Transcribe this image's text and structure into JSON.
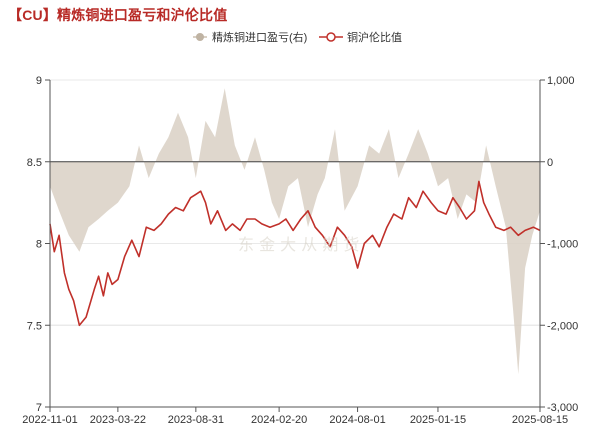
{
  "title": "【CU】精炼铜进口盈亏和沪伦比值",
  "watermark": "东 金 大 从 期 货",
  "colors": {
    "title": "#b82a26",
    "area": "#d9d0c4",
    "line": "#c0302a",
    "axis": "#555555",
    "grid": "#dcdcdc"
  },
  "chart_data": {
    "type": "line",
    "title": "【CU】精炼铜进口盈亏和沪伦比值",
    "legend_position": "top-right",
    "x_axis": {
      "labels": [
        "2022-11-01",
        "2023-03-22",
        "2023-08-31",
        "2024-02-20",
        "2024-08-01",
        "2025-01-15",
        "2025-08-15"
      ],
      "range": [
        "2022-11-01",
        "2025-08-15"
      ]
    },
    "y_left": {
      "range": [
        7,
        9
      ],
      "ticks": [
        7,
        7.5,
        8,
        8.5,
        9
      ],
      "tick_labels": [
        "7",
        "7.5",
        "8",
        "8.5",
        "9"
      ]
    },
    "y_right": {
      "range": [
        -3000,
        1000
      ],
      "ticks": [
        -3000,
        -2000,
        -1000,
        0,
        1000
      ],
      "tick_labels": [
        "-3,000",
        "-2,000",
        "-1,000",
        "0",
        "1,000"
      ]
    },
    "grid": true,
    "series": [
      {
        "name": "精炼铜进口盈亏(右)",
        "type": "area",
        "axis": "right",
        "color": "#d9d0c4",
        "x": [
          "2022-11-01",
          "2022-11-20",
          "2022-12-10",
          "2023-01-01",
          "2023-01-20",
          "2023-02-10",
          "2023-03-01",
          "2023-03-22",
          "2023-04-15",
          "2023-05-05",
          "2023-05-25",
          "2023-06-15",
          "2023-07-05",
          "2023-07-25",
          "2023-08-15",
          "2023-08-31",
          "2023-09-20",
          "2023-10-10",
          "2023-10-30",
          "2023-11-20",
          "2023-12-10",
          "2024-01-01",
          "2024-01-20",
          "2024-02-05",
          "2024-02-20",
          "2024-03-10",
          "2024-03-30",
          "2024-04-20",
          "2024-05-10",
          "2024-05-25",
          "2024-06-15",
          "2024-07-05",
          "2024-08-01",
          "2024-08-25",
          "2024-09-15",
          "2024-10-05",
          "2024-10-25",
          "2024-11-15",
          "2024-12-05",
          "2024-12-25",
          "2025-01-15",
          "2025-02-05",
          "2025-02-25",
          "2025-03-15",
          "2025-04-05",
          "2025-04-25",
          "2025-05-15",
          "2025-06-05",
          "2025-06-20",
          "2025-07-01",
          "2025-07-15",
          "2025-07-30",
          "2025-08-15"
        ],
        "values": [
          -300,
          -600,
          -900,
          -1100,
          -800,
          -700,
          -600,
          -500,
          -300,
          200,
          -200,
          100,
          300,
          600,
          300,
          -200,
          500,
          300,
          900,
          200,
          -100,
          300,
          -100,
          -500,
          -700,
          -300,
          -200,
          -800,
          -400,
          -200,
          400,
          -600,
          -300,
          200,
          100,
          400,
          -200,
          100,
          400,
          100,
          -300,
          -200,
          -700,
          -400,
          -500,
          200,
          -300,
          -800,
          -1800,
          -2600,
          -1300,
          -900,
          -600
        ]
      },
      {
        "name": "铜沪伦比值",
        "type": "line",
        "axis": "left",
        "color": "#c0302a",
        "x": [
          "2022-11-01",
          "2022-11-10",
          "2022-11-20",
          "2022-12-01",
          "2022-12-10",
          "2022-12-20",
          "2023-01-01",
          "2023-01-15",
          "2023-02-01",
          "2023-02-10",
          "2023-02-20",
          "2023-03-01",
          "2023-03-10",
          "2023-03-22",
          "2023-04-05",
          "2023-04-20",
          "2023-05-05",
          "2023-05-20",
          "2023-06-05",
          "2023-06-20",
          "2023-07-05",
          "2023-07-20",
          "2023-08-05",
          "2023-08-20",
          "2023-08-31",
          "2023-09-10",
          "2023-09-20",
          "2023-10-01",
          "2023-10-15",
          "2023-11-01",
          "2023-11-15",
          "2023-12-01",
          "2023-12-15",
          "2024-01-01",
          "2024-01-15",
          "2024-02-01",
          "2024-02-20",
          "2024-03-05",
          "2024-03-20",
          "2024-04-05",
          "2024-04-20",
          "2024-05-05",
          "2024-05-20",
          "2024-06-05",
          "2024-06-20",
          "2024-07-05",
          "2024-07-20",
          "2024-08-01",
          "2024-08-15",
          "2024-09-01",
          "2024-09-15",
          "2024-10-01",
          "2024-10-15",
          "2024-11-01",
          "2024-11-15",
          "2024-12-01",
          "2024-12-15",
          "2025-01-01",
          "2025-01-15",
          "2025-02-01",
          "2025-02-15",
          "2025-03-01",
          "2025-03-15",
          "2025-04-01",
          "2025-04-10",
          "2025-04-20",
          "2025-05-01",
          "2025-05-15",
          "2025-06-01",
          "2025-06-15",
          "2025-07-01",
          "2025-07-15",
          "2025-08-01",
          "2025-08-15"
        ],
        "values": [
          8.12,
          7.95,
          8.05,
          7.82,
          7.72,
          7.65,
          7.5,
          7.55,
          7.72,
          7.8,
          7.68,
          7.82,
          7.75,
          7.78,
          7.92,
          8.02,
          7.92,
          8.1,
          8.08,
          8.12,
          8.18,
          8.22,
          8.2,
          8.28,
          8.3,
          8.32,
          8.25,
          8.12,
          8.2,
          8.08,
          8.12,
          8.08,
          8.15,
          8.15,
          8.12,
          8.1,
          8.12,
          8.15,
          8.08,
          8.15,
          8.2,
          8.1,
          8.05,
          7.98,
          8.1,
          8.05,
          7.98,
          7.85,
          8.0,
          8.05,
          7.98,
          8.1,
          8.18,
          8.15,
          8.28,
          8.22,
          8.32,
          8.25,
          8.2,
          8.18,
          8.28,
          8.22,
          8.15,
          8.2,
          8.38,
          8.25,
          8.18,
          8.1,
          8.08,
          8.1,
          8.05,
          8.08,
          8.1,
          8.08
        ]
      }
    ]
  }
}
